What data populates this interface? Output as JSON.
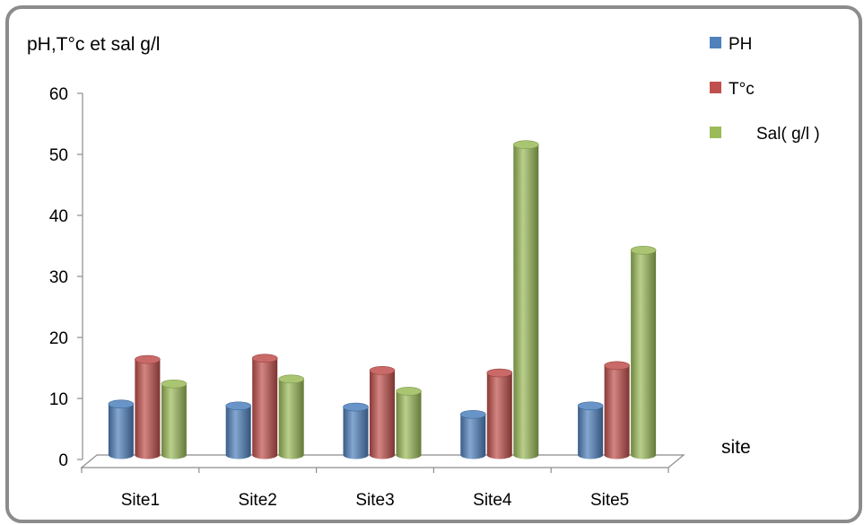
{
  "chart_data": {
    "type": "bar",
    "title": "pH,T°c et sal g/l",
    "xlabel": "site",
    "ylabel": "",
    "categories": [
      "Site1",
      "Site2",
      "Site3",
      "Site4",
      "Site5"
    ],
    "ylim": [
      0,
      60
    ],
    "yticks": [
      "0",
      "10",
      "20",
      "30",
      "40",
      "50",
      "60"
    ],
    "grid": false,
    "legend_position": "top-right",
    "series": [
      {
        "name": "PH",
        "color": "#4f81bd",
        "values": [
          8.5,
          8.2,
          8.0,
          6.8,
          8.2
        ]
      },
      {
        "name": "T°c",
        "color": "#c0504d",
        "values": [
          15.8,
          16.0,
          14.0,
          13.6,
          14.8
        ]
      },
      {
        "name": "Sal( g/l )",
        "color": "#9bbb59",
        "values": [
          11.8,
          12.6,
          10.6,
          51.0,
          33.7
        ]
      }
    ]
  }
}
